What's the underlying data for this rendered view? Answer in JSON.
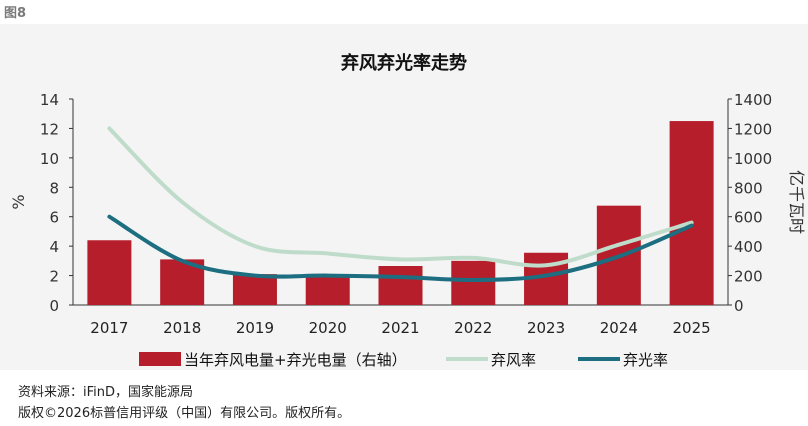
{
  "figure_label": "图8",
  "chart_data": {
    "type": "bar+line",
    "title": "弃风弃光率走势",
    "categories": [
      "2017",
      "2018",
      "2019",
      "2020",
      "2021",
      "2022",
      "2023",
      "2024",
      "2025"
    ],
    "y_left": {
      "label": "%",
      "ticks": [
        "0",
        "2",
        "4",
        "6",
        "8",
        "10",
        "12",
        "14"
      ],
      "range": [
        0,
        14
      ]
    },
    "y_right": {
      "label": "亿千瓦时",
      "ticks": [
        "0",
        "200",
        "400",
        "600",
        "800",
        "1000",
        "1200",
        "1400"
      ],
      "range": [
        0,
        1400
      ]
    },
    "bars": {
      "name": "当年弃风电量+弃光电量（右轴）",
      "axis": "right",
      "color": "#b51e2a",
      "values": [
        440,
        310,
        210,
        210,
        265,
        300,
        355,
        675,
        1250
      ]
    },
    "series": [
      {
        "name": "弃风率",
        "axis": "left",
        "color": "#bfdcca",
        "values": [
          12.0,
          7.0,
          4.0,
          3.5,
          3.1,
          3.2,
          2.7,
          4.1,
          5.6
        ]
      },
      {
        "name": "弃光率",
        "axis": "left",
        "color": "#1c6e80",
        "values": [
          6.0,
          3.0,
          2.0,
          2.0,
          1.9,
          1.7,
          2.0,
          3.3,
          5.4
        ]
      }
    ],
    "legend_position": "bottom",
    "grid": false
  },
  "footer": {
    "source": "资料来源：iFinD，国家能源局",
    "copyright": "版权©2026标普信用评级（中国）有限公司。版权所有。"
  }
}
